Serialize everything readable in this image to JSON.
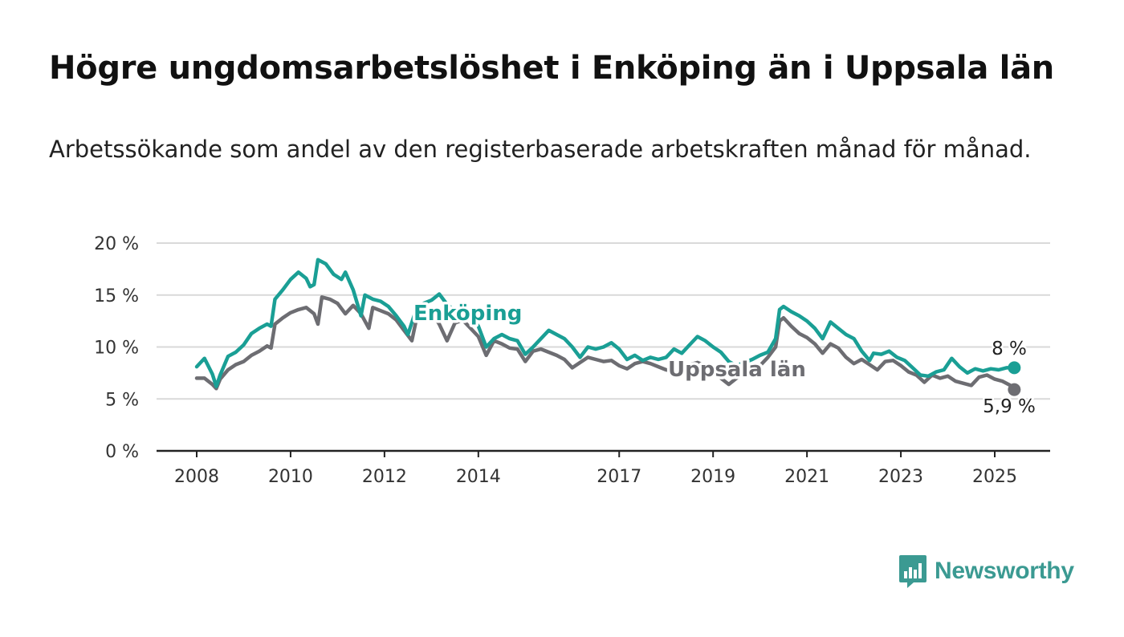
{
  "colors": {
    "enkoping": "#1a9f95",
    "uppsala": "#6d6d72",
    "grid": "#d9d9d9",
    "axis": "#222222",
    "brand": "#3b9a92"
  },
  "brand": {
    "name": "Newsworthy",
    "icon": "bar-chart-logo-icon"
  },
  "chart_data": {
    "type": "line",
    "title": "Högre ungdomsarbetslöshet i Enköping än i Uppsala län",
    "subtitle": "Arbetssökande som andel av den registerbaserade arbetskraften månad för månad.",
    "xlabel": "",
    "ylabel": "",
    "x_ticks": [
      "2008",
      "2010",
      "2012",
      "2014",
      "2017",
      "2019",
      "2021",
      "2023",
      "2025"
    ],
    "y_ticks": [
      "0 %",
      "5 %",
      "10 %",
      "15 %",
      "20 %"
    ],
    "y_tick_values": [
      0,
      5,
      10,
      15,
      20
    ],
    "ylim": [
      0,
      20
    ],
    "grid": true,
    "legend": "inline labels",
    "series": [
      {
        "name": "Enköping",
        "color": "#1a9f95",
        "end_label": "8 %",
        "points": [
          [
            "2008-01",
            8.1
          ],
          [
            "2008-03",
            8.9
          ],
          [
            "2008-05",
            7.4
          ],
          [
            "2008-06",
            6.2
          ],
          [
            "2008-07",
            7.3
          ],
          [
            "2008-09",
            9.1
          ],
          [
            "2008-11",
            9.5
          ],
          [
            "2009-01",
            10.2
          ],
          [
            "2009-03",
            11.3
          ],
          [
            "2009-05",
            11.8
          ],
          [
            "2009-07",
            12.2
          ],
          [
            "2009-08",
            12.0
          ],
          [
            "2009-09",
            14.6
          ],
          [
            "2009-11",
            15.5
          ],
          [
            "2010-01",
            16.5
          ],
          [
            "2010-03",
            17.2
          ],
          [
            "2010-05",
            16.6
          ],
          [
            "2010-06",
            15.8
          ],
          [
            "2010-07",
            16.0
          ],
          [
            "2010-08",
            18.4
          ],
          [
            "2010-10",
            18.0
          ],
          [
            "2010-12",
            17.0
          ],
          [
            "2011-02",
            16.5
          ],
          [
            "2011-03",
            17.2
          ],
          [
            "2011-05",
            15.5
          ],
          [
            "2011-07",
            13.0
          ],
          [
            "2011-08",
            15.0
          ],
          [
            "2011-10",
            14.6
          ],
          [
            "2011-12",
            14.4
          ],
          [
            "2012-02",
            13.9
          ],
          [
            "2012-04",
            13.0
          ],
          [
            "2012-06",
            12.0
          ],
          [
            "2012-07",
            11.2
          ],
          [
            "2012-09",
            13.5
          ],
          [
            "2012-11",
            14.2
          ],
          [
            "2013-01",
            14.5
          ],
          [
            "2013-03",
            15.1
          ],
          [
            "2013-05",
            14.1
          ],
          [
            "2013-07",
            13.5
          ],
          [
            "2013-09",
            14.0
          ],
          [
            "2013-11",
            13.0
          ],
          [
            "2014-01",
            12.0
          ],
          [
            "2014-03",
            10.0
          ],
          [
            "2014-05",
            10.8
          ],
          [
            "2014-07",
            11.2
          ],
          [
            "2014-09",
            10.8
          ],
          [
            "2014-11",
            10.6
          ],
          [
            "2015-01",
            9.3
          ],
          [
            "2015-03",
            10.0
          ],
          [
            "2015-05",
            10.8
          ],
          [
            "2015-07",
            11.6
          ],
          [
            "2015-09",
            11.2
          ],
          [
            "2015-11",
            10.8
          ],
          [
            "2016-01",
            10.0
          ],
          [
            "2016-03",
            9.0
          ],
          [
            "2016-05",
            10.0
          ],
          [
            "2016-07",
            9.8
          ],
          [
            "2016-09",
            10.0
          ],
          [
            "2016-11",
            10.4
          ],
          [
            "2017-01",
            9.8
          ],
          [
            "2017-03",
            8.8
          ],
          [
            "2017-05",
            9.2
          ],
          [
            "2017-07",
            8.7
          ],
          [
            "2017-09",
            9.0
          ],
          [
            "2017-11",
            8.8
          ],
          [
            "2018-01",
            9.0
          ],
          [
            "2018-03",
            9.8
          ],
          [
            "2018-05",
            9.4
          ],
          [
            "2018-07",
            10.2
          ],
          [
            "2018-09",
            11.0
          ],
          [
            "2018-11",
            10.6
          ],
          [
            "2019-01",
            10.0
          ],
          [
            "2019-03",
            9.5
          ],
          [
            "2019-05",
            8.6
          ],
          [
            "2019-07",
            8.2
          ],
          [
            "2019-09",
            8.5
          ],
          [
            "2019-11",
            8.8
          ],
          [
            "2020-01",
            9.2
          ],
          [
            "2020-03",
            9.5
          ],
          [
            "2020-05",
            10.8
          ],
          [
            "2020-06",
            13.6
          ],
          [
            "2020-07",
            13.9
          ],
          [
            "2020-09",
            13.4
          ],
          [
            "2020-11",
            13.0
          ],
          [
            "2021-01",
            12.5
          ],
          [
            "2021-03",
            11.8
          ],
          [
            "2021-05",
            10.8
          ],
          [
            "2021-07",
            12.4
          ],
          [
            "2021-09",
            11.8
          ],
          [
            "2021-11",
            11.2
          ],
          [
            "2022-01",
            10.8
          ],
          [
            "2022-03",
            9.6
          ],
          [
            "2022-05",
            8.7
          ],
          [
            "2022-06",
            9.4
          ],
          [
            "2022-08",
            9.3
          ],
          [
            "2022-10",
            9.6
          ],
          [
            "2022-12",
            9.0
          ],
          [
            "2023-02",
            8.7
          ],
          [
            "2023-04",
            8.0
          ],
          [
            "2023-06",
            7.3
          ],
          [
            "2023-08",
            7.2
          ],
          [
            "2023-10",
            7.6
          ],
          [
            "2023-12",
            7.8
          ],
          [
            "2024-02",
            8.9
          ],
          [
            "2024-04",
            8.1
          ],
          [
            "2024-06",
            7.5
          ],
          [
            "2024-08",
            7.9
          ],
          [
            "2024-10",
            7.7
          ],
          [
            "2024-12",
            7.9
          ],
          [
            "2025-02",
            7.8
          ],
          [
            "2025-04",
            8.0
          ],
          [
            "2025-06",
            8.0
          ]
        ]
      },
      {
        "name": "Uppsala län",
        "color": "#6d6d72",
        "end_label": "5,9 %",
        "points": [
          [
            "2008-01",
            7.0
          ],
          [
            "2008-03",
            7.0
          ],
          [
            "2008-05",
            6.4
          ],
          [
            "2008-06",
            6.0
          ],
          [
            "2008-07",
            6.9
          ],
          [
            "2008-09",
            7.8
          ],
          [
            "2008-11",
            8.3
          ],
          [
            "2009-01",
            8.6
          ],
          [
            "2009-03",
            9.2
          ],
          [
            "2009-05",
            9.6
          ],
          [
            "2009-07",
            10.1
          ],
          [
            "2009-08",
            9.9
          ],
          [
            "2009-09",
            12.2
          ],
          [
            "2009-11",
            12.8
          ],
          [
            "2010-01",
            13.3
          ],
          [
            "2010-03",
            13.6
          ],
          [
            "2010-05",
            13.8
          ],
          [
            "2010-07",
            13.2
          ],
          [
            "2010-08",
            12.2
          ],
          [
            "2010-09",
            14.8
          ],
          [
            "2010-11",
            14.6
          ],
          [
            "2011-01",
            14.2
          ],
          [
            "2011-03",
            13.2
          ],
          [
            "2011-05",
            14.0
          ],
          [
            "2011-07",
            13.2
          ],
          [
            "2011-09",
            11.8
          ],
          [
            "2011-10",
            13.8
          ],
          [
            "2011-12",
            13.5
          ],
          [
            "2012-02",
            13.2
          ],
          [
            "2012-04",
            12.6
          ],
          [
            "2012-06",
            11.6
          ],
          [
            "2012-08",
            10.6
          ],
          [
            "2012-09",
            12.4
          ],
          [
            "2012-11",
            13.0
          ],
          [
            "2013-01",
            13.4
          ],
          [
            "2013-03",
            12.2
          ],
          [
            "2013-05",
            10.6
          ],
          [
            "2013-07",
            12.3
          ],
          [
            "2013-09",
            12.6
          ],
          [
            "2013-11",
            11.8
          ],
          [
            "2014-01",
            11.0
          ],
          [
            "2014-03",
            9.2
          ],
          [
            "2014-05",
            10.6
          ],
          [
            "2014-07",
            10.3
          ],
          [
            "2014-09",
            9.9
          ],
          [
            "2014-11",
            9.8
          ],
          [
            "2015-01",
            8.6
          ],
          [
            "2015-03",
            9.6
          ],
          [
            "2015-05",
            9.8
          ],
          [
            "2015-07",
            9.5
          ],
          [
            "2015-09",
            9.2
          ],
          [
            "2015-11",
            8.8
          ],
          [
            "2016-01",
            8.0
          ],
          [
            "2016-03",
            8.5
          ],
          [
            "2016-05",
            9.0
          ],
          [
            "2016-07",
            8.8
          ],
          [
            "2016-09",
            8.6
          ],
          [
            "2016-11",
            8.7
          ],
          [
            "2017-01",
            8.2
          ],
          [
            "2017-03",
            7.9
          ],
          [
            "2017-05",
            8.4
          ],
          [
            "2017-07",
            8.6
          ],
          [
            "2017-09",
            8.4
          ],
          [
            "2017-11",
            8.1
          ],
          [
            "2018-01",
            7.8
          ],
          [
            "2018-03",
            7.7
          ],
          [
            "2018-05",
            8.0
          ],
          [
            "2018-07",
            8.3
          ],
          [
            "2018-09",
            8.5
          ],
          [
            "2018-11",
            8.2
          ],
          [
            "2019-01",
            7.6
          ],
          [
            "2019-03",
            7.0
          ],
          [
            "2019-05",
            6.4
          ],
          [
            "2019-07",
            7.0
          ],
          [
            "2019-09",
            7.5
          ],
          [
            "2019-11",
            7.8
          ],
          [
            "2020-01",
            8.2
          ],
          [
            "2020-03",
            9.0
          ],
          [
            "2020-05",
            10.0
          ],
          [
            "2020-06",
            12.5
          ],
          [
            "2020-07",
            12.8
          ],
          [
            "2020-09",
            12.0
          ],
          [
            "2020-11",
            11.3
          ],
          [
            "2021-01",
            10.9
          ],
          [
            "2021-03",
            10.3
          ],
          [
            "2021-05",
            9.4
          ],
          [
            "2021-07",
            10.3
          ],
          [
            "2021-09",
            9.9
          ],
          [
            "2021-11",
            9.0
          ],
          [
            "2022-01",
            8.4
          ],
          [
            "2022-03",
            8.8
          ],
          [
            "2022-05",
            8.3
          ],
          [
            "2022-07",
            7.8
          ],
          [
            "2022-09",
            8.6
          ],
          [
            "2022-11",
            8.7
          ],
          [
            "2023-01",
            8.2
          ],
          [
            "2023-03",
            7.6
          ],
          [
            "2023-05",
            7.3
          ],
          [
            "2023-07",
            6.6
          ],
          [
            "2023-09",
            7.3
          ],
          [
            "2023-11",
            7.0
          ],
          [
            "2024-01",
            7.2
          ],
          [
            "2024-03",
            6.7
          ],
          [
            "2024-05",
            6.5
          ],
          [
            "2024-07",
            6.3
          ],
          [
            "2024-09",
            7.1
          ],
          [
            "2024-11",
            7.3
          ],
          [
            "2025-01",
            6.9
          ],
          [
            "2025-03",
            6.7
          ],
          [
            "2025-05",
            6.3
          ],
          [
            "2025-06",
            5.9
          ]
        ]
      }
    ]
  }
}
